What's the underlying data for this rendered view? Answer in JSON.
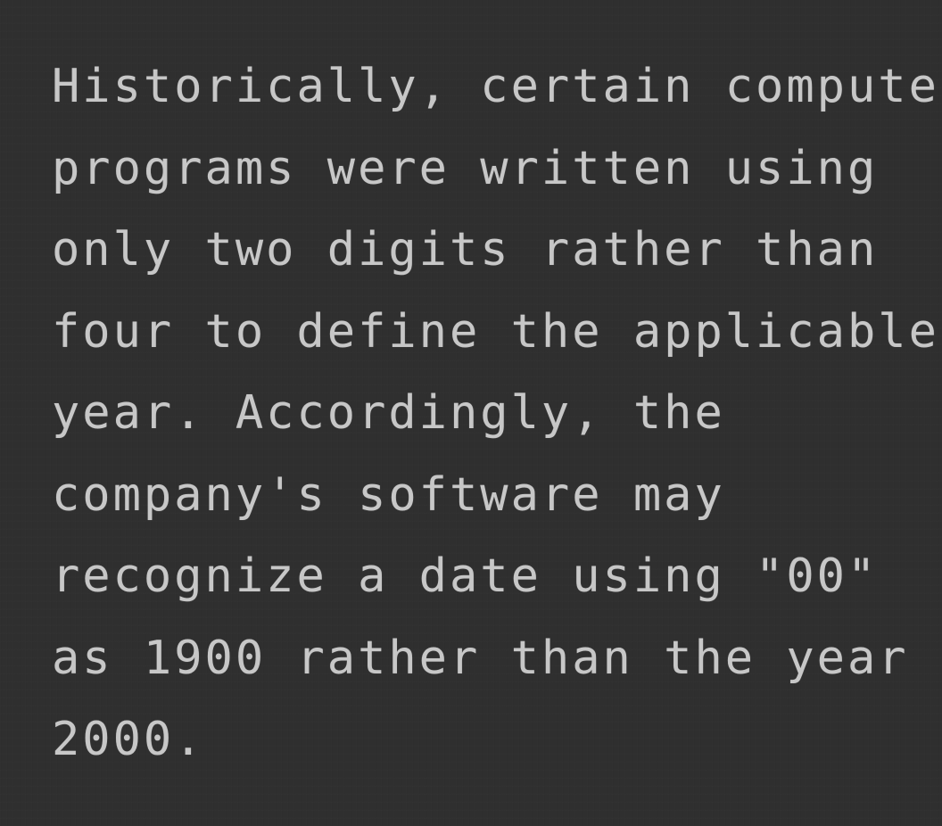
{
  "lines": [
    "Historically, certain computer",
    "programs were written using",
    "only two digits rather than",
    "four to define the applicable",
    "year. Accordingly, the",
    "company's software may",
    "recognize a date using \"00\"",
    "as 1900 rather than the year",
    "2000."
  ],
  "colors": {
    "background": "#2f2f2f",
    "text": "#c7c7c7"
  }
}
